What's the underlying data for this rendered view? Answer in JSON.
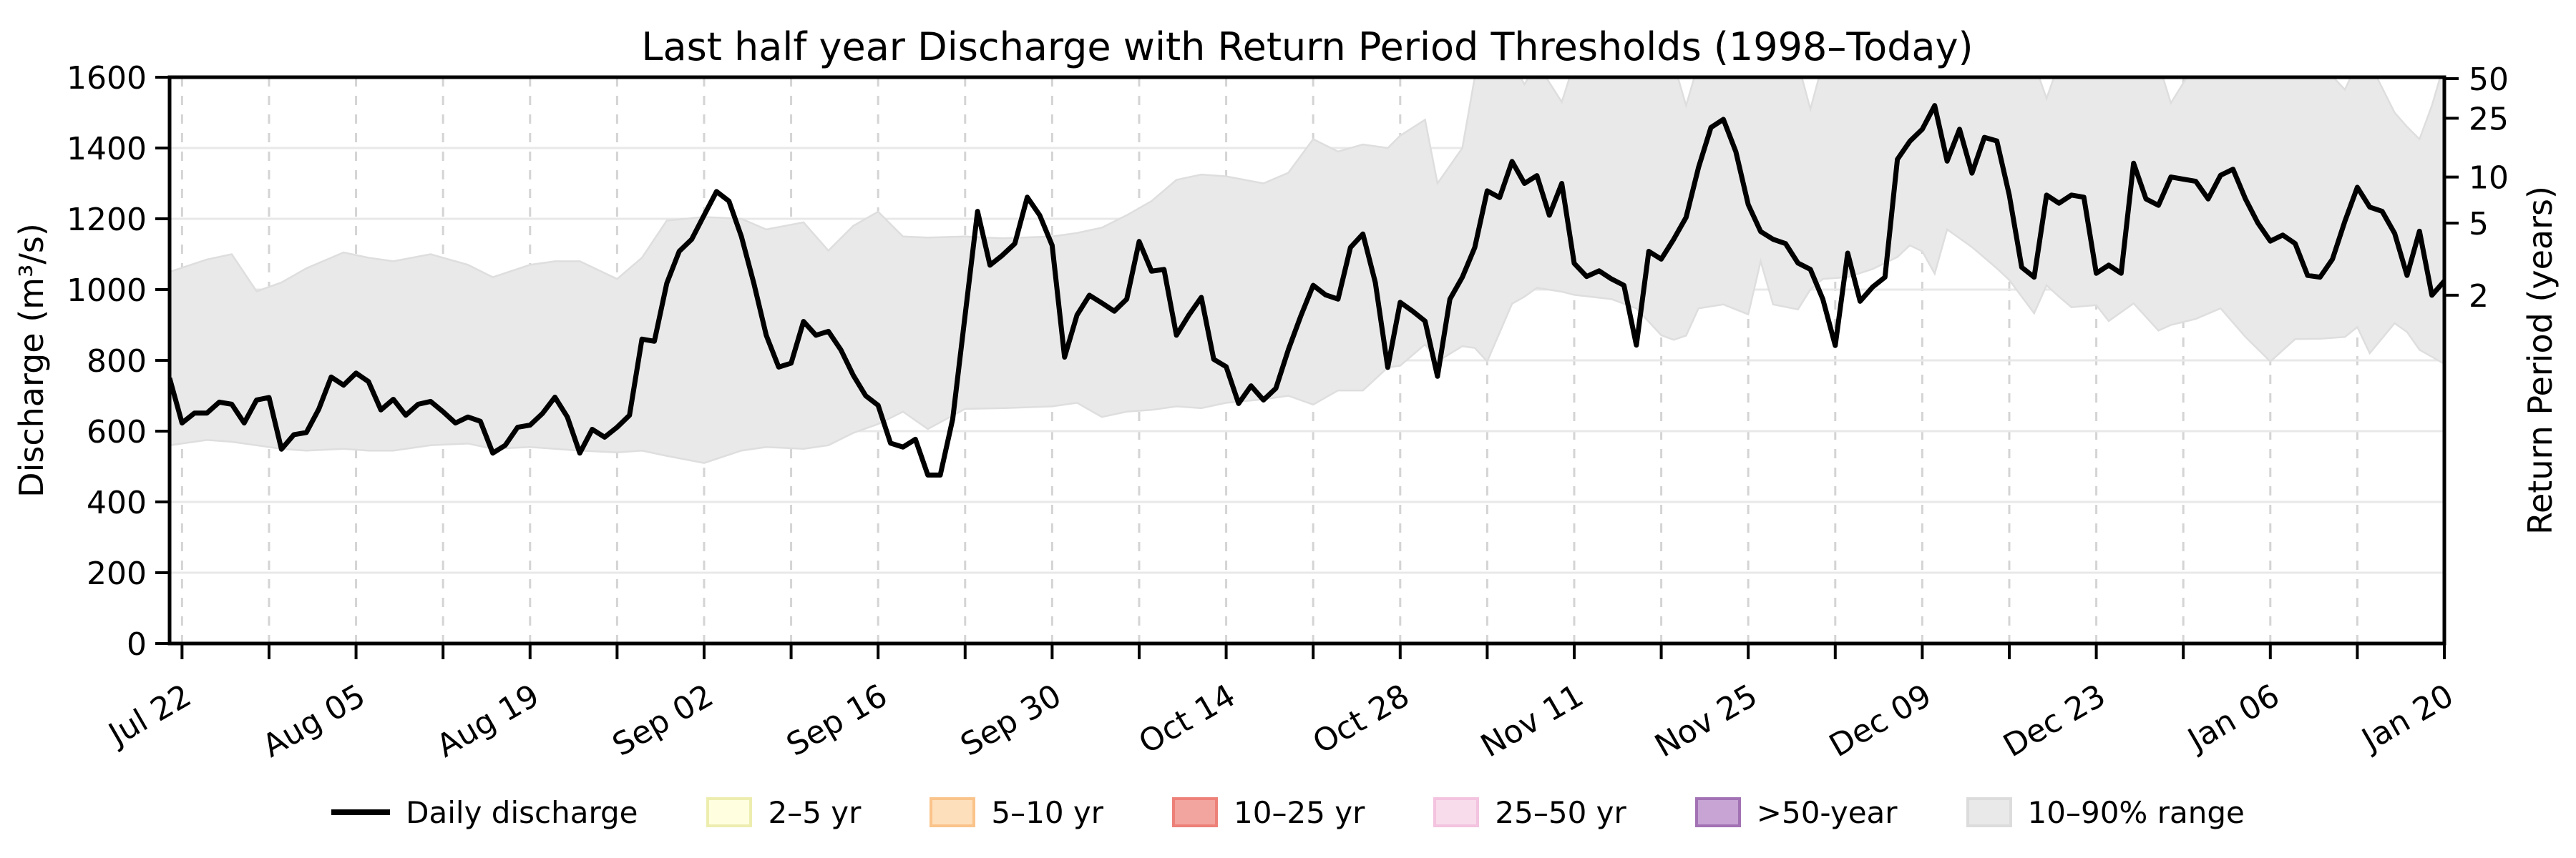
{
  "title": "Last half year Discharge with Return Period Thresholds (1998–Today)",
  "axes": {
    "left_label": "Discharge (m³/s)",
    "right_label": "Return Period (years)",
    "left_ticks": [
      0,
      200,
      400,
      600,
      800,
      1000,
      1200,
      1400,
      1600
    ],
    "right_ticks": [
      {
        "label": "50",
        "discharge": 1596
      },
      {
        "label": "25",
        "discharge": 1484
      },
      {
        "label": "10",
        "discharge": 1318
      },
      {
        "label": "5",
        "discharge": 1188
      },
      {
        "label": "2",
        "discharge": 984
      }
    ],
    "x_ticks": [
      {
        "label": "Jul 22",
        "day": 1
      },
      {
        "label": "Aug 05",
        "day": 15
      },
      {
        "label": "Aug 19",
        "day": 29
      },
      {
        "label": "Sep 02",
        "day": 43
      },
      {
        "label": "Sep 16",
        "day": 57
      },
      {
        "label": "Sep 30",
        "day": 71
      },
      {
        "label": "Oct 14",
        "day": 85
      },
      {
        "label": "Oct 28",
        "day": 99
      },
      {
        "label": "Nov 11",
        "day": 113
      },
      {
        "label": "Nov 25",
        "day": 127
      },
      {
        "label": "Dec 09",
        "day": 141
      },
      {
        "label": "Dec 23",
        "day": 155
      },
      {
        "label": "Jan 06",
        "day": 169
      },
      {
        "label": "Jan 20",
        "day": 183
      }
    ]
  },
  "legend": {
    "items": [
      {
        "label": "Daily discharge",
        "swatch": "line",
        "fill": "#000000",
        "stroke": "#000000"
      },
      {
        "label": "2–5 yr",
        "swatch": "box",
        "fill": "#FFFFE0",
        "stroke": "#EDEDAF"
      },
      {
        "label": "5–10 yr",
        "swatch": "box",
        "fill": "#FDDFBB",
        "stroke": "#FAC38A"
      },
      {
        "label": "10–25 yr",
        "swatch": "box",
        "fill": "#F2A59E",
        "stroke": "#ED8078"
      },
      {
        "label": "25–50 yr",
        "swatch": "box",
        "fill": "#F8DCEC",
        "stroke": "#F3C3DF"
      },
      {
        "label": ">50-year",
        "swatch": "box",
        "fill": "#C7A4D4",
        "stroke": "#A272B4"
      },
      {
        "label": "10–90% range",
        "swatch": "box",
        "fill": "#E9E9E9",
        "stroke": "#DCDCDC"
      }
    ]
  },
  "colors": {
    "line": "#000000",
    "band_fill": "#E9E9E9",
    "band_edge": "#DEDEDE",
    "hgrid": "#E8E8E8",
    "vgrid": "#D4D4D4",
    "spine": "#000000"
  },
  "chart_data": {
    "type": "line",
    "title": "Last half year Discharge with Return Period Thresholds (1998–Today)",
    "xlabel": "",
    "ylabel": "Discharge (m³/s)",
    "y2label": "Return Period (years)",
    "ylim": [
      0,
      1600
    ],
    "grid": true,
    "legend_position": "bottom-center",
    "x_start_date": "Jul 21",
    "x_end_date": "Jan 20",
    "x_tick_labels": [
      "Jul 22",
      "Aug 05",
      "Aug 19",
      "Sep 02",
      "Sep 16",
      "Sep 30",
      "Oct 14",
      "Oct 28",
      "Nov 11",
      "Nov 25",
      "Dec 09",
      "Dec 23",
      "Jan 06",
      "Jan 20"
    ],
    "x_tick_days": [
      1,
      15,
      29,
      43,
      57,
      71,
      85,
      99,
      113,
      127,
      141,
      155,
      169,
      183
    ],
    "return_period_thresholds_m3s": {
      "2": 984,
      "5": 1188,
      "10": 1318,
      "25": 1484,
      "50": 1596
    },
    "series": [
      {
        "name": "Daily discharge",
        "unit": "m3/s",
        "day0_date": "Jul 21",
        "values": [
          750,
          623,
          651,
          651,
          682,
          676,
          623,
          688,
          695,
          549,
          590,
          596,
          662,
          753,
          730,
          764,
          740,
          660,
          690,
          645,
          676,
          684,
          655,
          623,
          640,
          628,
          538,
          560,
          611,
          617,
          650,
          696,
          640,
          538,
          605,
          583,
          611,
          645,
          860,
          854,
          1018,
          1108,
          1142,
          1210,
          1277,
          1250,
          1150,
          1018,
          871,
          781,
          792,
          910,
          871,
          882,
          830,
          758,
          700,
          673,
          566,
          555,
          577,
          476,
          476,
          634,
          928,
          1221,
          1069,
          1097,
          1130,
          1261,
          1210,
          1125,
          809,
          928,
          984,
          962,
          939,
          973,
          1136,
          1052,
          1057,
          871,
          928,
          978,
          803,
          782,
          678,
          728,
          688,
          721,
          830,
          925,
          1012,
          985,
          973,
          1119,
          1157,
          1020,
          780,
          964,
          939,
          911,
          755,
          973,
          1035,
          1119,
          1279,
          1260,
          1362,
          1300,
          1322,
          1210,
          1300,
          1074,
          1037,
          1053,
          1030,
          1012,
          843,
          1108,
          1086,
          1142,
          1204,
          1345,
          1458,
          1481,
          1390,
          1240,
          1164,
          1142,
          1130,
          1075,
          1057,
          973,
          842,
          1103,
          967,
          1007,
          1035,
          1368,
          1419,
          1453,
          1520,
          1363,
          1453,
          1329,
          1430,
          1420,
          1267,
          1063,
          1035,
          1267,
          1244,
          1267,
          1261,
          1046,
          1069,
          1046,
          1357,
          1256,
          1238,
          1318,
          1312,
          1306,
          1256,
          1323,
          1340,
          1256,
          1188,
          1137,
          1154,
          1130,
          1040,
          1035,
          1086,
          1193,
          1289,
          1233,
          1221,
          1159,
          1040,
          1165,
          984,
          1024
        ]
      }
    ],
    "band_10_90_pct": {
      "name": "10–90% range",
      "note": "control points [day, low, high]; high capped at 1640 where band extends above axis top (clipped at 1600)",
      "points": [
        [
          0,
          560,
          1050
        ],
        [
          3,
          575,
          1085
        ],
        [
          5,
          570,
          1100
        ],
        [
          7,
          560,
          995
        ],
        [
          9,
          550,
          1020
        ],
        [
          11,
          545,
          1060
        ],
        [
          14,
          550,
          1105
        ],
        [
          16,
          545,
          1090
        ],
        [
          18,
          545,
          1080
        ],
        [
          21,
          560,
          1100
        ],
        [
          24,
          565,
          1070
        ],
        [
          26,
          550,
          1035
        ],
        [
          29,
          555,
          1070
        ],
        [
          31,
          550,
          1080
        ],
        [
          33,
          545,
          1080
        ],
        [
          36,
          540,
          1030
        ],
        [
          38,
          545,
          1090
        ],
        [
          40,
          530,
          1195
        ],
        [
          43,
          510,
          1205
        ],
        [
          46,
          545,
          1200
        ],
        [
          48,
          555,
          1170
        ],
        [
          51,
          550,
          1190
        ],
        [
          53,
          560,
          1110
        ],
        [
          55,
          595,
          1180
        ],
        [
          57,
          620,
          1220
        ],
        [
          59,
          655,
          1150
        ],
        [
          61,
          606,
          1147
        ],
        [
          64,
          663,
          1150
        ],
        [
          67,
          665,
          1145
        ],
        [
          71,
          670,
          1150
        ],
        [
          73,
          680,
          1160
        ],
        [
          75,
          640,
          1175
        ],
        [
          77,
          655,
          1210
        ],
        [
          79,
          660,
          1250
        ],
        [
          81,
          670,
          1310
        ],
        [
          83,
          665,
          1325
        ],
        [
          85,
          680,
          1320
        ],
        [
          88,
          690,
          1300
        ],
        [
          90,
          700,
          1330
        ],
        [
          92,
          675,
          1425
        ],
        [
          94,
          715,
          1390
        ],
        [
          96,
          715,
          1410
        ],
        [
          98,
          780,
          1400
        ],
        [
          99,
          785,
          1435
        ],
        [
          101,
          845,
          1480
        ],
        [
          102,
          797,
          1300
        ],
        [
          104,
          840,
          1400
        ],
        [
          105,
          835,
          1600
        ],
        [
          106,
          797,
          1640
        ],
        [
          108,
          960,
          1640
        ],
        [
          109,
          980,
          1580
        ],
        [
          110,
          1005,
          1640
        ],
        [
          112,
          994,
          1530
        ],
        [
          113,
          985,
          1640
        ],
        [
          116,
          973,
          1640
        ],
        [
          118,
          947,
          1640
        ],
        [
          120,
          871,
          1640
        ],
        [
          121,
          858,
          1640
        ],
        [
          122,
          870,
          1520
        ],
        [
          123,
          947,
          1640
        ],
        [
          125,
          958,
          1640
        ],
        [
          127,
          930,
          1640
        ],
        [
          128,
          1080,
          1640
        ],
        [
          129,
          958,
          1640
        ],
        [
          131,
          944,
          1640
        ],
        [
          132,
          1000,
          1510
        ],
        [
          133,
          1030,
          1640
        ],
        [
          135,
          1035,
          1640
        ],
        [
          137,
          1058,
          1640
        ],
        [
          139,
          1092,
          1640
        ],
        [
          140,
          1125,
          1640
        ],
        [
          141,
          1108,
          1640
        ],
        [
          142,
          1045,
          1640
        ],
        [
          143,
          1170,
          1640
        ],
        [
          145,
          1120,
          1640
        ],
        [
          147,
          1060,
          1640
        ],
        [
          148,
          1027,
          1640
        ],
        [
          150,
          933,
          1640
        ],
        [
          151,
          1012,
          1540
        ],
        [
          152,
          980,
          1640
        ],
        [
          153,
          950,
          1640
        ],
        [
          155,
          956,
          1640
        ],
        [
          156,
          911,
          1640
        ],
        [
          158,
          961,
          1640
        ],
        [
          160,
          884,
          1640
        ],
        [
          161,
          900,
          1527
        ],
        [
          163,
          917,
          1640
        ],
        [
          165,
          947,
          1640
        ],
        [
          167,
          866,
          1640
        ],
        [
          169,
          797,
          1640
        ],
        [
          171,
          860,
          1640
        ],
        [
          173,
          861,
          1640
        ],
        [
          175,
          866,
          1565
        ],
        [
          176,
          894,
          1640
        ],
        [
          177,
          820,
          1640
        ],
        [
          179,
          905,
          1500
        ],
        [
          180,
          880,
          1460
        ],
        [
          181,
          830,
          1425
        ],
        [
          182,
          810,
          1520
        ],
        [
          183,
          790,
          1640
        ]
      ]
    }
  }
}
